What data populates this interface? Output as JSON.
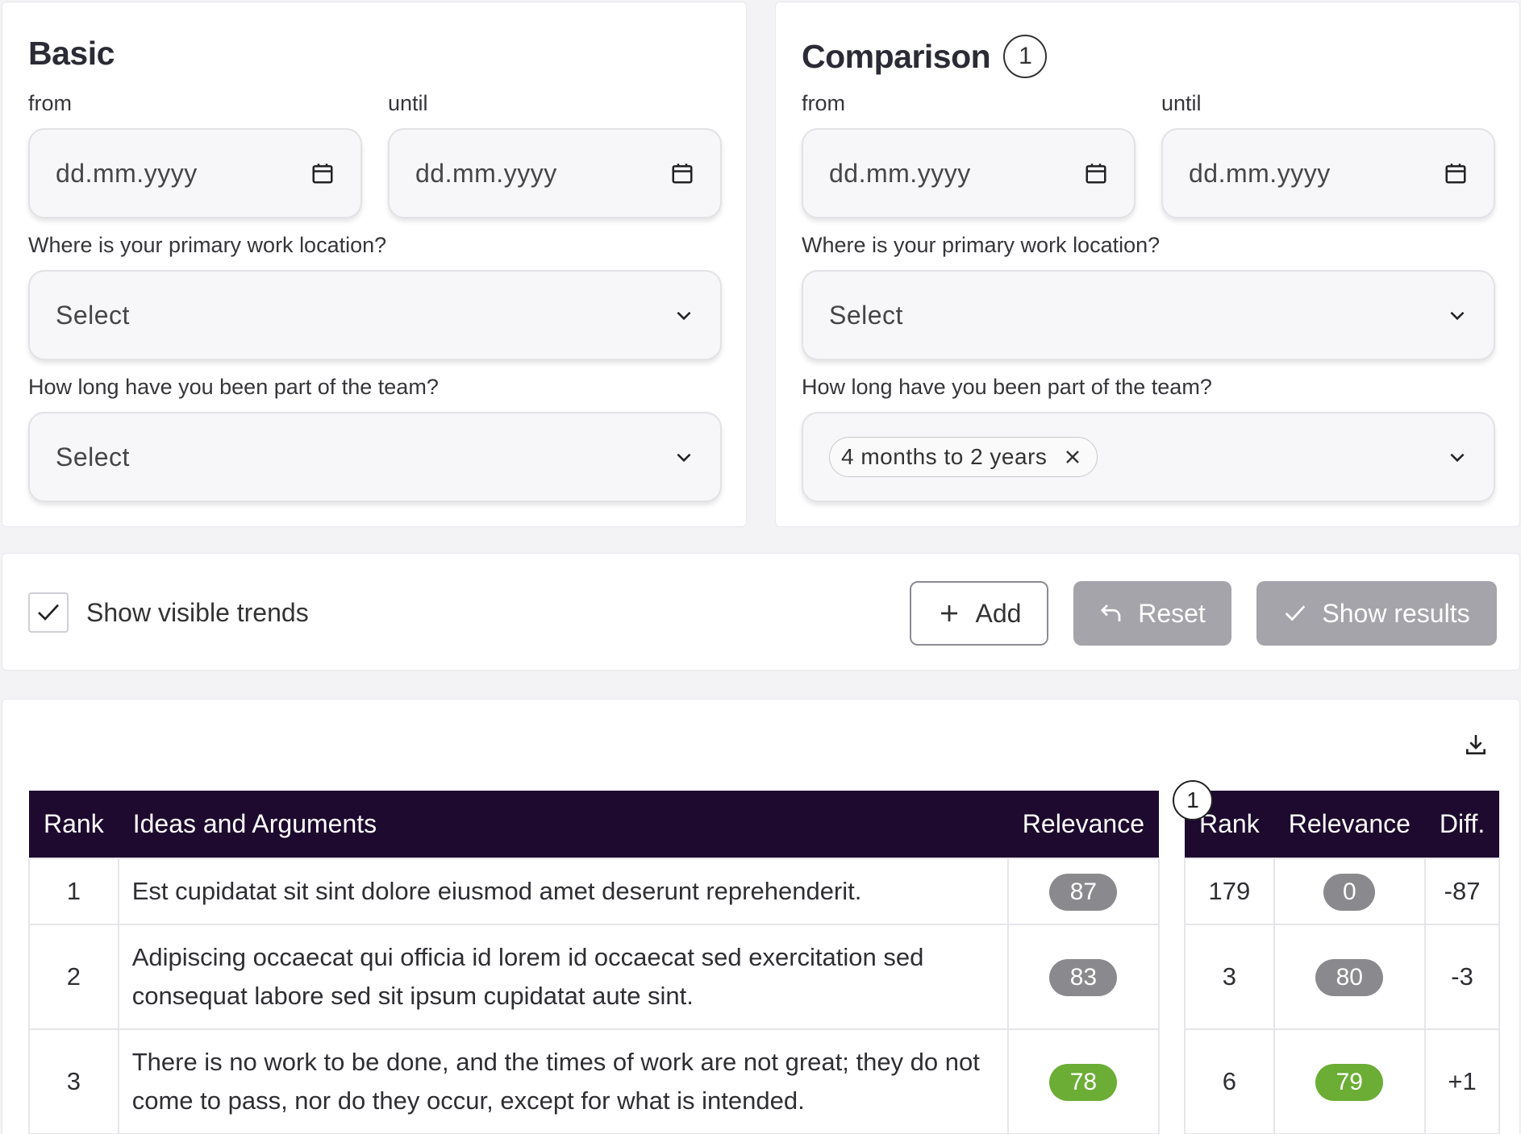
{
  "basic": {
    "title": "Basic",
    "from_label": "from",
    "until_label": "until",
    "from_placeholder": "dd.mm.yyyy",
    "until_placeholder": "dd.mm.yyyy",
    "location_question": "Where is your primary work location?",
    "location_value": "Select",
    "tenure_question": "How long have you been part of the team?",
    "tenure_value": "Select"
  },
  "comparison": {
    "title": "Comparison",
    "count": "1",
    "from_label": "from",
    "until_label": "until",
    "from_placeholder": "dd.mm.yyyy",
    "until_placeholder": "dd.mm.yyyy",
    "location_question": "Where is your primary work location?",
    "location_value": "Select",
    "tenure_question": "How long have you been part of the team?",
    "tenure_chip": "4 months to 2 years"
  },
  "actions": {
    "show_trends_label": "Show visible trends",
    "show_trends_checked": true,
    "add_label": "Add",
    "reset_label": "Reset",
    "show_results_label": "Show results"
  },
  "results": {
    "main_headers": {
      "rank": "Rank",
      "ideas": "Ideas and Arguments",
      "relevance": "Relevance"
    },
    "comp_badge": "1",
    "comp_headers": {
      "rank": "Rank",
      "relevance": "Relevance",
      "diff": "Diff."
    },
    "rows": [
      {
        "rank": "1",
        "idea": "Est cupidatat sit sint dolore eiusmod amet deserunt reprehenderit.",
        "relevance": "87",
        "relevance_color": "gray",
        "comp_rank": "179",
        "comp_relevance": "0",
        "comp_relevance_color": "gray",
        "diff": "-87"
      },
      {
        "rank": "2",
        "idea": "Adipiscing occaecat qui officia id lorem id occaecat sed exercitation sed consequat labore sed sit ipsum cupidatat aute sint.",
        "relevance": "83",
        "relevance_color": "gray",
        "comp_rank": "3",
        "comp_relevance": "80",
        "comp_relevance_color": "gray",
        "diff": "-3"
      },
      {
        "rank": "3",
        "idea": "There is no work to be done, and the times of work are not great; they do not come to pass, nor do they occur, except for what is intended.",
        "relevance": "78",
        "relevance_color": "green",
        "comp_rank": "6",
        "comp_relevance": "79",
        "comp_relevance_color": "green",
        "diff": "+1"
      }
    ]
  },
  "colors": {
    "header_bg": "#1d0a2e",
    "pill_gray": "#8a8a8e",
    "pill_green": "#6bad35",
    "button_disabled": "#a4a4aa"
  },
  "icons": {
    "date": "calendar-icon",
    "select": "chevron-down-icon",
    "chip_remove": "close-icon",
    "add": "plus-icon",
    "reset": "undo-arrow-icon",
    "show_results": "check-icon",
    "download": "download-icon"
  }
}
